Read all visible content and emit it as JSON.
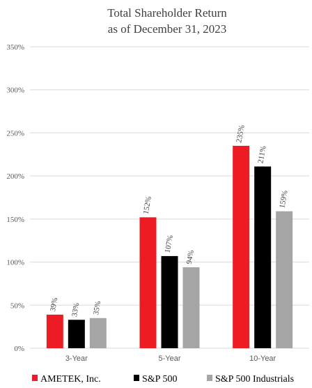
{
  "chart_data": {
    "type": "bar",
    "title": [
      "Total Shareholder Return",
      "as of December 31, 2023"
    ],
    "categories": [
      "3-Year",
      "5-Year",
      "10-Year"
    ],
    "series": [
      {
        "name": "AMETEK, Inc.",
        "color": "#ED1C24",
        "values": [
          39,
          152,
          235
        ],
        "labels": [
          "39%",
          "152%",
          "235%"
        ]
      },
      {
        "name": "S&P 500",
        "color": "#000000",
        "values": [
          33,
          107,
          211
        ],
        "labels": [
          "33%",
          "107%",
          "211%"
        ]
      },
      {
        "name": "S&P 500 Industrials",
        "color": "#A5A5A5",
        "values": [
          35,
          94,
          159
        ],
        "labels": [
          "35%",
          "94%",
          "159%"
        ]
      }
    ],
    "ylim": [
      0,
      350
    ],
    "yticks": [
      0,
      50,
      100,
      150,
      200,
      250,
      300,
      350
    ],
    "ytick_labels": [
      "0%",
      "50%",
      "100%",
      "150%",
      "200%",
      "250%",
      "300%",
      "350%"
    ],
    "grid": true,
    "legend_position": "bottom",
    "xlabel": "",
    "ylabel": ""
  }
}
